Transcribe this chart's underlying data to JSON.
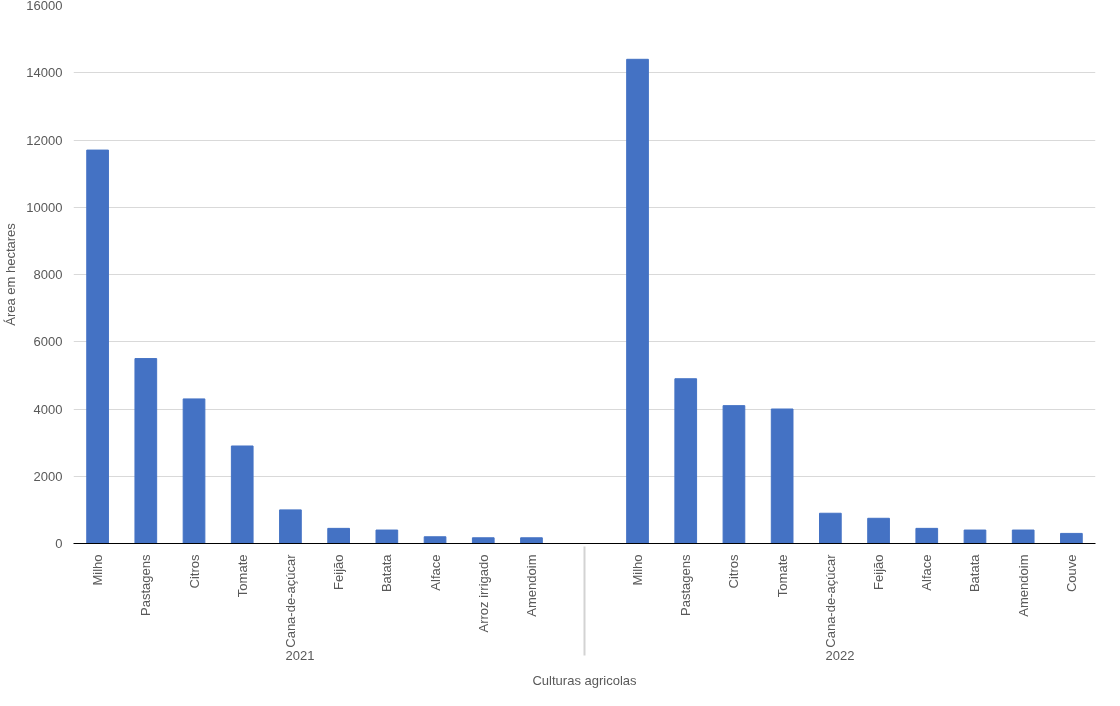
{
  "chart_data": {
    "type": "bar",
    "xlabel": "Culturas agricolas",
    "ylabel": "Área em hectares",
    "categories": [
      "Milho",
      "Pastagens",
      "Citros",
      "Tomate",
      "Cana-de-açúcar",
      "Feijão",
      "Batata",
      "Alface",
      "Arroz irrigado",
      "Amendoim",
      "Milho",
      "Pastagens",
      "Citros",
      "Tomate",
      "Cana-de-açúcar",
      "Feijão",
      "Alface",
      "Batata",
      "Amendoim",
      "Couve"
    ],
    "values": [
      11700,
      5500,
      4300,
      2900,
      1000,
      450,
      400,
      200,
      170,
      170,
      14400,
      4900,
      4100,
      4000,
      900,
      750,
      450,
      400,
      400,
      300
    ],
    "color": "#4472c4",
    "annotations": [
      "2021",
      "2022"
    ],
    "ylim": [
      0,
      16000
    ],
    "yticks": [
      0,
      2000,
      4000,
      6000,
      8000,
      10000,
      12000,
      14000,
      16000
    ],
    "grid": "y"
  }
}
